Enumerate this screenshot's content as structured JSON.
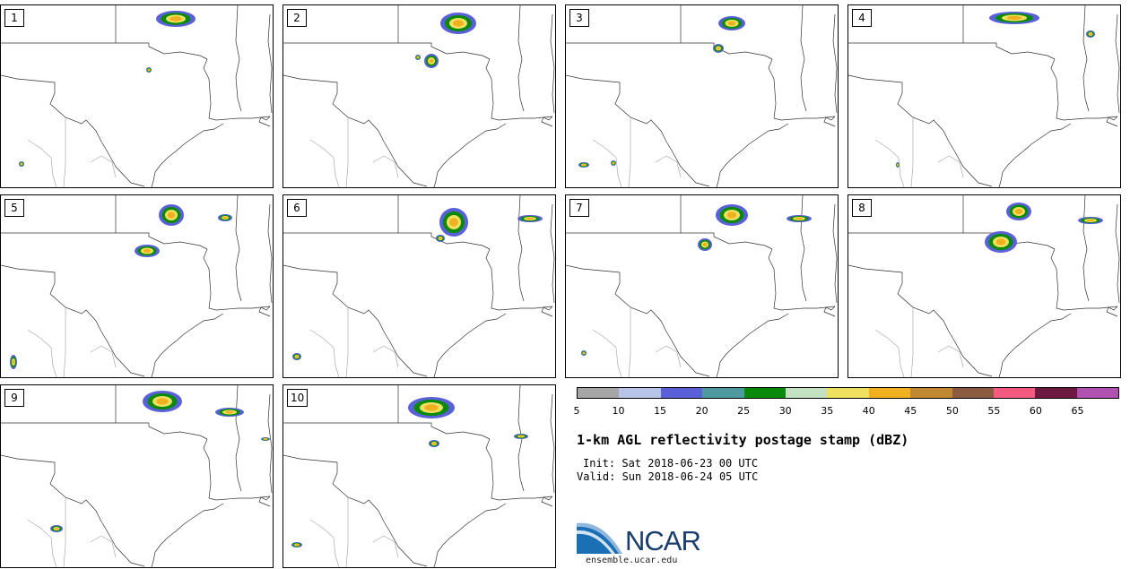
{
  "panels": [
    {
      "label": "1"
    },
    {
      "label": "2"
    },
    {
      "label": "3"
    },
    {
      "label": "4"
    },
    {
      "label": "5"
    },
    {
      "label": "6"
    },
    {
      "label": "7"
    },
    {
      "label": "8"
    },
    {
      "label": "9"
    },
    {
      "label": "10"
    }
  ],
  "colorbar": {
    "colors": [
      "#a6a6a6",
      "#b8c3e8",
      "#5a60d8",
      "#4f9aa0",
      "#0a8a0a",
      "#c3e0c0",
      "#f0e060",
      "#f0b020",
      "#c08830",
      "#8c5c40",
      "#f55a80",
      "#6e1a40",
      "#b050b0"
    ],
    "labels": [
      "5",
      "10",
      "15",
      "20",
      "25",
      "30",
      "35",
      "40",
      "45",
      "50",
      "55",
      "60",
      "65"
    ]
  },
  "title": "1-km AGL reflectivity postage stamp (dBZ)",
  "init": "Init: Sat 2018-06-23 00 UTC",
  "valid": "Valid: Sun 2018-06-24 05 UTC",
  "logo": {
    "text": "NCAR",
    "url": "ensemble.ucar.edu"
  }
}
